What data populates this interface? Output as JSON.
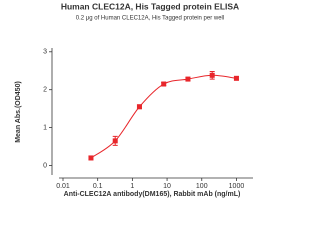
{
  "chart_data": {
    "type": "scatter",
    "title": "Human CLEC12A, His Tagged protein ELISA",
    "subtitle": "0.2 μg of Human CLEC12A, His Tagged protein per well",
    "x_label": "Anti-CLEC12A antibody(DM165), Rabbit mAb (ng/mL)",
    "y_label": "Mean Abs.(OD450)",
    "x_scale": "log",
    "series": [
      {
        "x": [
          0.064,
          0.32,
          1.6,
          8,
          40,
          200,
          1000
        ],
        "values": [
          0.2,
          0.65,
          1.55,
          2.15,
          2.28,
          2.38,
          2.3
        ],
        "errors": [
          0.05,
          0.12,
          0.05,
          0.04,
          0.04,
          0.1,
          0.04
        ],
        "color": "#e8262b"
      }
    ],
    "xlim": [
      0.01,
      3000
    ],
    "ylim": [
      -0.25,
      3.1
    ],
    "xticks": [
      0.01,
      0.1,
      1,
      10,
      100,
      1000
    ],
    "yticks": [
      0,
      1,
      2,
      3
    ]
  }
}
